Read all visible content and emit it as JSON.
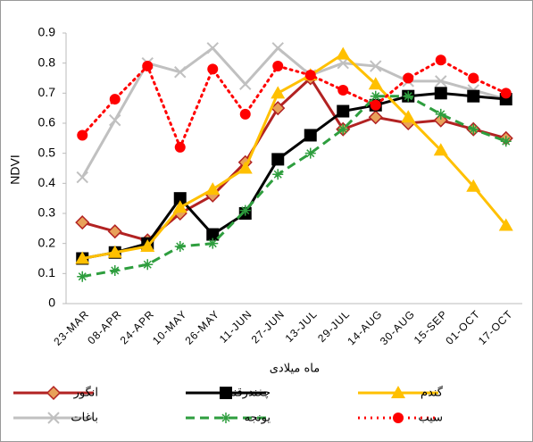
{
  "chart_data": {
    "type": "line",
    "x_label": "ماه میلادی",
    "y_label": "NDVI",
    "categories": [
      "23-MAR",
      "08-APR",
      "24-APR",
      "10-MAY",
      "26-MAY",
      "11-JUN",
      "27-JUN",
      "13-JUL",
      "29-JUL",
      "14-AUG",
      "30-AUG",
      "15-SEP",
      "01-OCT",
      "17-OCT"
    ],
    "ylim": [
      0,
      0.9
    ],
    "yticks": [
      0,
      0.1,
      0.2,
      0.3,
      0.4,
      0.5,
      0.6,
      0.7,
      0.8,
      0.9
    ],
    "grid": false,
    "legend": "bottom",
    "series": [
      {
        "name": "باغات",
        "color": "#c0c0c0",
        "marker": "x",
        "dash": "solid",
        "values": [
          0.42,
          0.61,
          0.8,
          0.77,
          0.85,
          0.73,
          0.85,
          0.76,
          0.8,
          0.79,
          0.74,
          0.74,
          0.71,
          0.68
        ]
      },
      {
        "name": "انگور",
        "color": "#b22222",
        "marker": "diamond",
        "dash": "solid",
        "values": [
          0.27,
          0.24,
          0.21,
          0.3,
          0.36,
          0.47,
          0.65,
          0.75,
          0.58,
          0.62,
          0.6,
          0.61,
          0.58,
          0.55
        ]
      },
      {
        "name": "چغندرقند",
        "color": "#000000",
        "marker": "square",
        "dash": "solid",
        "values": [
          0.15,
          0.17,
          0.2,
          0.35,
          0.23,
          0.3,
          0.48,
          0.56,
          0.64,
          0.66,
          0.69,
          0.7,
          0.69,
          0.68
        ]
      },
      {
        "name": "گندم",
        "color": "#ffc000",
        "marker": "triangle",
        "dash": "solid",
        "values": [
          0.15,
          0.17,
          0.19,
          0.32,
          0.38,
          0.45,
          0.7,
          0.76,
          0.83,
          0.73,
          0.62,
          0.51,
          0.39,
          0.26
        ]
      },
      {
        "name": "یونجه",
        "color": "#2e9e3e",
        "marker": "star",
        "dash": "dashed",
        "values": [
          0.09,
          0.11,
          0.13,
          0.19,
          0.2,
          0.31,
          0.43,
          0.5,
          0.58,
          0.69,
          0.69,
          0.63,
          0.58,
          0.54
        ]
      },
      {
        "name": "سیب",
        "color": "#ff0000",
        "marker": "circle",
        "dash": "dotted",
        "values": [
          0.56,
          0.68,
          0.79,
          0.52,
          0.78,
          0.63,
          0.79,
          0.76,
          0.71,
          0.66,
          0.75,
          0.81,
          0.75,
          0.7
        ]
      }
    ]
  }
}
